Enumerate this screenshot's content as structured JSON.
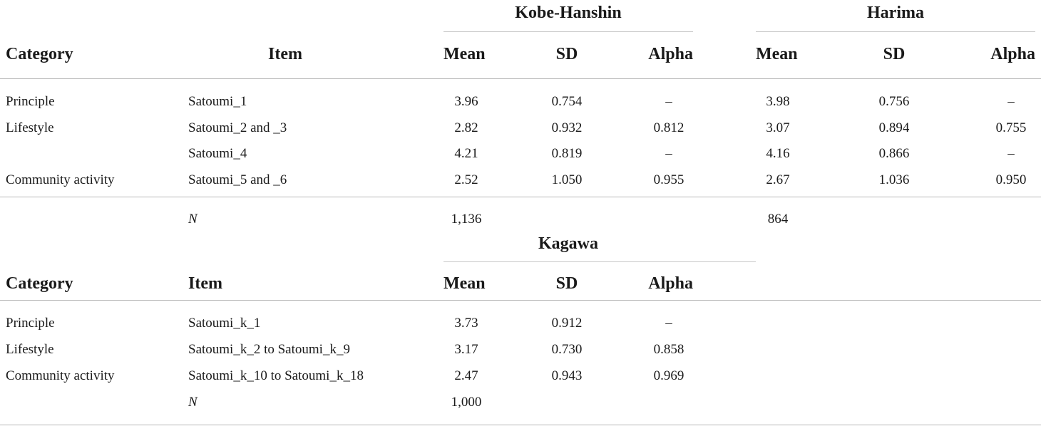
{
  "table1": {
    "group_headers": {
      "kobe": "Kobe-Hanshin",
      "harima": "Harima"
    },
    "columns": {
      "category": "Category",
      "item": "Item",
      "kobe_mean": "Mean",
      "kobe_sd": "SD",
      "kobe_alpha": "Alpha",
      "harima_mean": "Mean",
      "harima_sd": "SD",
      "harima_alpha": "Alpha"
    },
    "rows": [
      {
        "category": "Principle",
        "item": "Satoumi_1",
        "kobe_mean": "3.96",
        "kobe_sd": "0.754",
        "kobe_alpha": "–",
        "harima_mean": "3.98",
        "harima_sd": "0.756",
        "harima_alpha": "–"
      },
      {
        "category": "Lifestyle",
        "item": "Satoumi_2 and _3",
        "kobe_mean": "2.82",
        "kobe_sd": "0.932",
        "kobe_alpha": "0.812",
        "harima_mean": "3.07",
        "harima_sd": "0.894",
        "harima_alpha": "0.755"
      },
      {
        "category": "",
        "item": "Satoumi_4",
        "kobe_mean": "4.21",
        "kobe_sd": "0.819",
        "kobe_alpha": "–",
        "harima_mean": "4.16",
        "harima_sd": "0.866",
        "harima_alpha": "–"
      },
      {
        "category": "Community activity",
        "item": "Satoumi_5 and _6",
        "kobe_mean": "2.52",
        "kobe_sd": "1.050",
        "kobe_alpha": "0.955",
        "harima_mean": "2.67",
        "harima_sd": "1.036",
        "harima_alpha": "0.950"
      }
    ],
    "n_row": {
      "label": "N",
      "kobe": "1,136",
      "harima": "864"
    }
  },
  "table2": {
    "group_header": "Kagawa",
    "columns": {
      "category": "Category",
      "item": "Item",
      "mean": "Mean",
      "sd": "SD",
      "alpha": "Alpha"
    },
    "rows": [
      {
        "category": "Principle",
        "item": "Satoumi_k_1",
        "mean": "3.73",
        "sd": "0.912",
        "alpha": "–"
      },
      {
        "category": "Lifestyle",
        "item": "Satoumi_k_2 to Satoumi_k_9",
        "mean": "3.17",
        "sd": "0.730",
        "alpha": "0.858"
      },
      {
        "category": "Community activity",
        "item": "Satoumi_k_10 to Satoumi_k_18",
        "mean": "2.47",
        "sd": "0.943",
        "alpha": "0.969"
      }
    ],
    "n_row": {
      "label": "N",
      "value": "1,000"
    }
  }
}
